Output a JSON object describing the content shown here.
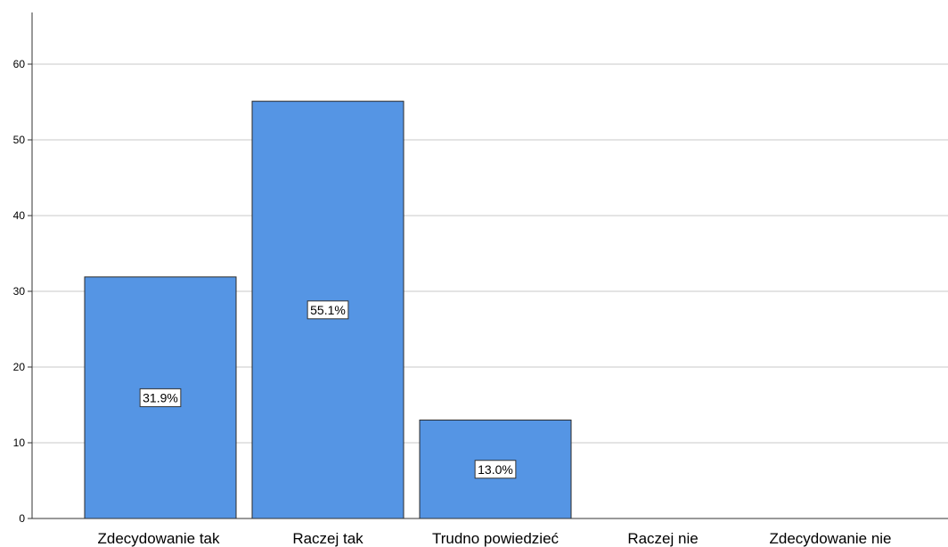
{
  "chart_data": {
    "type": "bar",
    "title": "",
    "xlabel": "",
    "ylabel": "",
    "categories": [
      "Zdecydowanie tak",
      "Raczej tak",
      "Trudno powiedzieć",
      "Raczej nie",
      "Zdecydowanie nie"
    ],
    "values": [
      31.9,
      55.1,
      13.0,
      0,
      0
    ],
    "data_labels": [
      "31.9%",
      "55.1%",
      "13.0%",
      "",
      ""
    ],
    "ylim": [
      0,
      66
    ],
    "yticks": [
      0,
      10,
      20,
      30,
      40,
      50,
      60
    ],
    "grid": true,
    "legend": "none",
    "colors": {
      "bar_fill": "#5595e4",
      "bar_stroke": "#2b2b2b",
      "grid": "#c8c8c8",
      "axis": "#333333",
      "label_box_fill": "#ffffff",
      "label_box_stroke": "#333333"
    }
  }
}
